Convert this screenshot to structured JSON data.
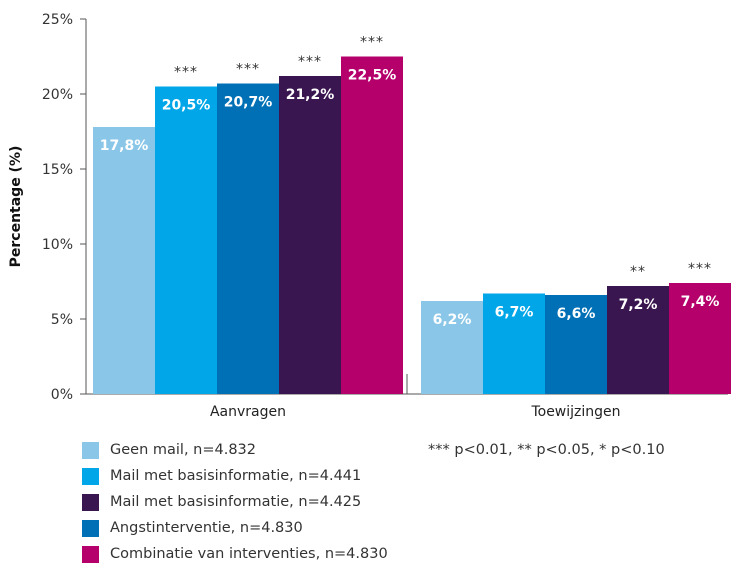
{
  "chart_data": {
    "type": "bar",
    "ylabel": "Percentage (%)",
    "xlabel": "",
    "ylim": [
      0,
      25
    ],
    "yticks": [
      "0%",
      "5%",
      "10%",
      "15%",
      "20%",
      "25%"
    ],
    "ytick_values": [
      0,
      5,
      10,
      15,
      20,
      25
    ],
    "categories": [
      "Aanvragen",
      "Toewijzingen"
    ],
    "grid": false,
    "legend_position": "bottom-left",
    "series": [
      {
        "name": "Geen mail, n=4.832",
        "color": "#8ac6e8",
        "values": [
          17.8,
          6.2
        ],
        "labels": [
          "17,8%",
          "6,2%"
        ],
        "significance": [
          "",
          ""
        ]
      },
      {
        "name": "Mail met basisinformatie, n=4.441",
        "color": "#00a6e8",
        "values": [
          20.5,
          6.7
        ],
        "labels": [
          "20,5%",
          "6,7%"
        ],
        "significance": [
          "***",
          ""
        ]
      },
      {
        "name": "Angstinterventie, n=4.830",
        "color": "#0070b6",
        "values": [
          20.7,
          6.6
        ],
        "labels": [
          "20,7%",
          "6,6%"
        ],
        "significance": [
          "***",
          ""
        ]
      },
      {
        "name": "Mail met basisinformatie, n=4.425",
        "color": "#3a1650",
        "values": [
          21.2,
          7.2
        ],
        "labels": [
          "21,2%",
          "7,2%"
        ],
        "significance": [
          "***",
          "**"
        ]
      },
      {
        "name": "Combinatie van interventies, n=4.830",
        "color": "#b5006b",
        "values": [
          22.5,
          7.4
        ],
        "labels": [
          "22,5%",
          "7,4%"
        ],
        "significance": [
          "***",
          "***"
        ]
      }
    ],
    "note": "*** p<0.01, ** p<0.05, * p<0.10"
  },
  "legend": [
    {
      "label": "Geen mail, n=4.832",
      "color": "#8ac6e8"
    },
    {
      "label": "Mail met basisinformatie, n=4.441",
      "color": "#00a6e8"
    },
    {
      "label": "Mail met basisinformatie, n=4.425",
      "color": "#3a1650"
    },
    {
      "label": "Angstinterventie, n=4.830",
      "color": "#0070b6"
    },
    {
      "label": "Combinatie van interventies, n=4.830",
      "color": "#b5006b"
    }
  ]
}
